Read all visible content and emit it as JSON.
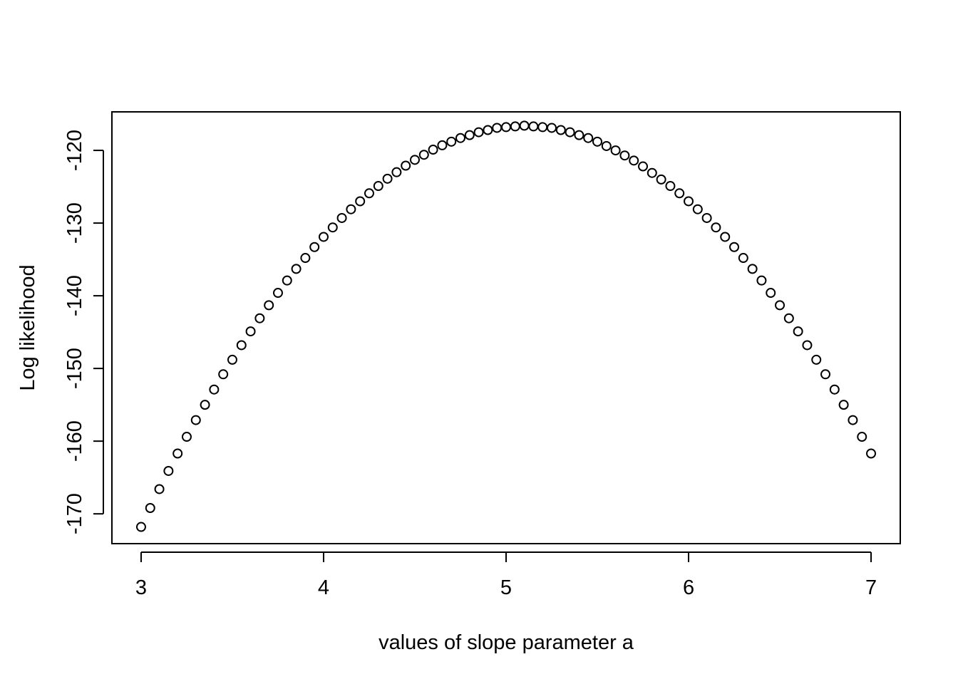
{
  "chart_data": {
    "type": "scatter",
    "title": "",
    "xlabel": "values of slope parameter a",
    "ylabel": "Log likelihood",
    "xlim": [
      2.84,
      7.16
    ],
    "ylim": [
      -174.1,
      -114.7
    ],
    "xticks": [
      3,
      4,
      5,
      6,
      7
    ],
    "yticks": [
      -170,
      -160,
      -150,
      -140,
      -130,
      -120
    ],
    "xtick_labels": [
      "3",
      "4",
      "5",
      "6",
      "7"
    ],
    "ytick_labels": [
      "-170",
      "-160",
      "-150",
      "-140",
      "-130",
      "-120"
    ],
    "marker": "open-circle",
    "grid": false,
    "legend": "none",
    "point_color": "#000000",
    "x": [
      3.0,
      3.05,
      3.1,
      3.15,
      3.2,
      3.25,
      3.3,
      3.35,
      3.4,
      3.45,
      3.5,
      3.55,
      3.6,
      3.65,
      3.7,
      3.75,
      3.8,
      3.85,
      3.9,
      3.95,
      4.0,
      4.05,
      4.1,
      4.15,
      4.2,
      4.25,
      4.3,
      4.35,
      4.4,
      4.45,
      4.5,
      4.55,
      4.6,
      4.65,
      4.7,
      4.75,
      4.8,
      4.85,
      4.9,
      4.95,
      5.0,
      5.05,
      5.1,
      5.15,
      5.2,
      5.25,
      5.3,
      5.35,
      5.4,
      5.45,
      5.5,
      5.55,
      5.6,
      5.65,
      5.7,
      5.75,
      5.8,
      5.85,
      5.9,
      5.95,
      6.0,
      6.05,
      6.1,
      6.15,
      6.2,
      6.25,
      6.3,
      6.35,
      6.4,
      6.45,
      6.5,
      6.55,
      6.6,
      6.65,
      6.7,
      6.75,
      6.8,
      6.85,
      6.9,
      6.95,
      7.0
    ],
    "y": [
      -171.8,
      -169.2,
      -166.6,
      -164.1,
      -161.7,
      -159.4,
      -157.1,
      -155.0,
      -152.9,
      -150.8,
      -148.8,
      -146.8,
      -144.9,
      -143.1,
      -141.3,
      -139.6,
      -137.9,
      -136.3,
      -134.8,
      -133.3,
      -131.9,
      -130.6,
      -129.3,
      -128.1,
      -127.0,
      -125.9,
      -124.9,
      -123.9,
      -123.0,
      -122.1,
      -121.3,
      -120.6,
      -119.9,
      -119.3,
      -118.8,
      -118.3,
      -117.9,
      -117.5,
      -117.2,
      -116.9,
      -116.8,
      -116.7,
      -116.6,
      -116.7,
      -116.8,
      -116.9,
      -117.2,
      -117.5,
      -117.9,
      -118.3,
      -118.8,
      -119.4,
      -120.0,
      -120.7,
      -121.4,
      -122.2,
      -123.1,
      -124.0,
      -124.9,
      -125.9,
      -127.0,
      -128.1,
      -129.3,
      -130.6,
      -131.9,
      -133.3,
      -134.8,
      -136.3,
      -137.9,
      -139.6,
      -141.3,
      -143.1,
      -144.9,
      -146.8,
      -148.8,
      -150.8,
      -152.9,
      -155.0,
      -157.1,
      -159.4,
      -161.7
    ]
  }
}
